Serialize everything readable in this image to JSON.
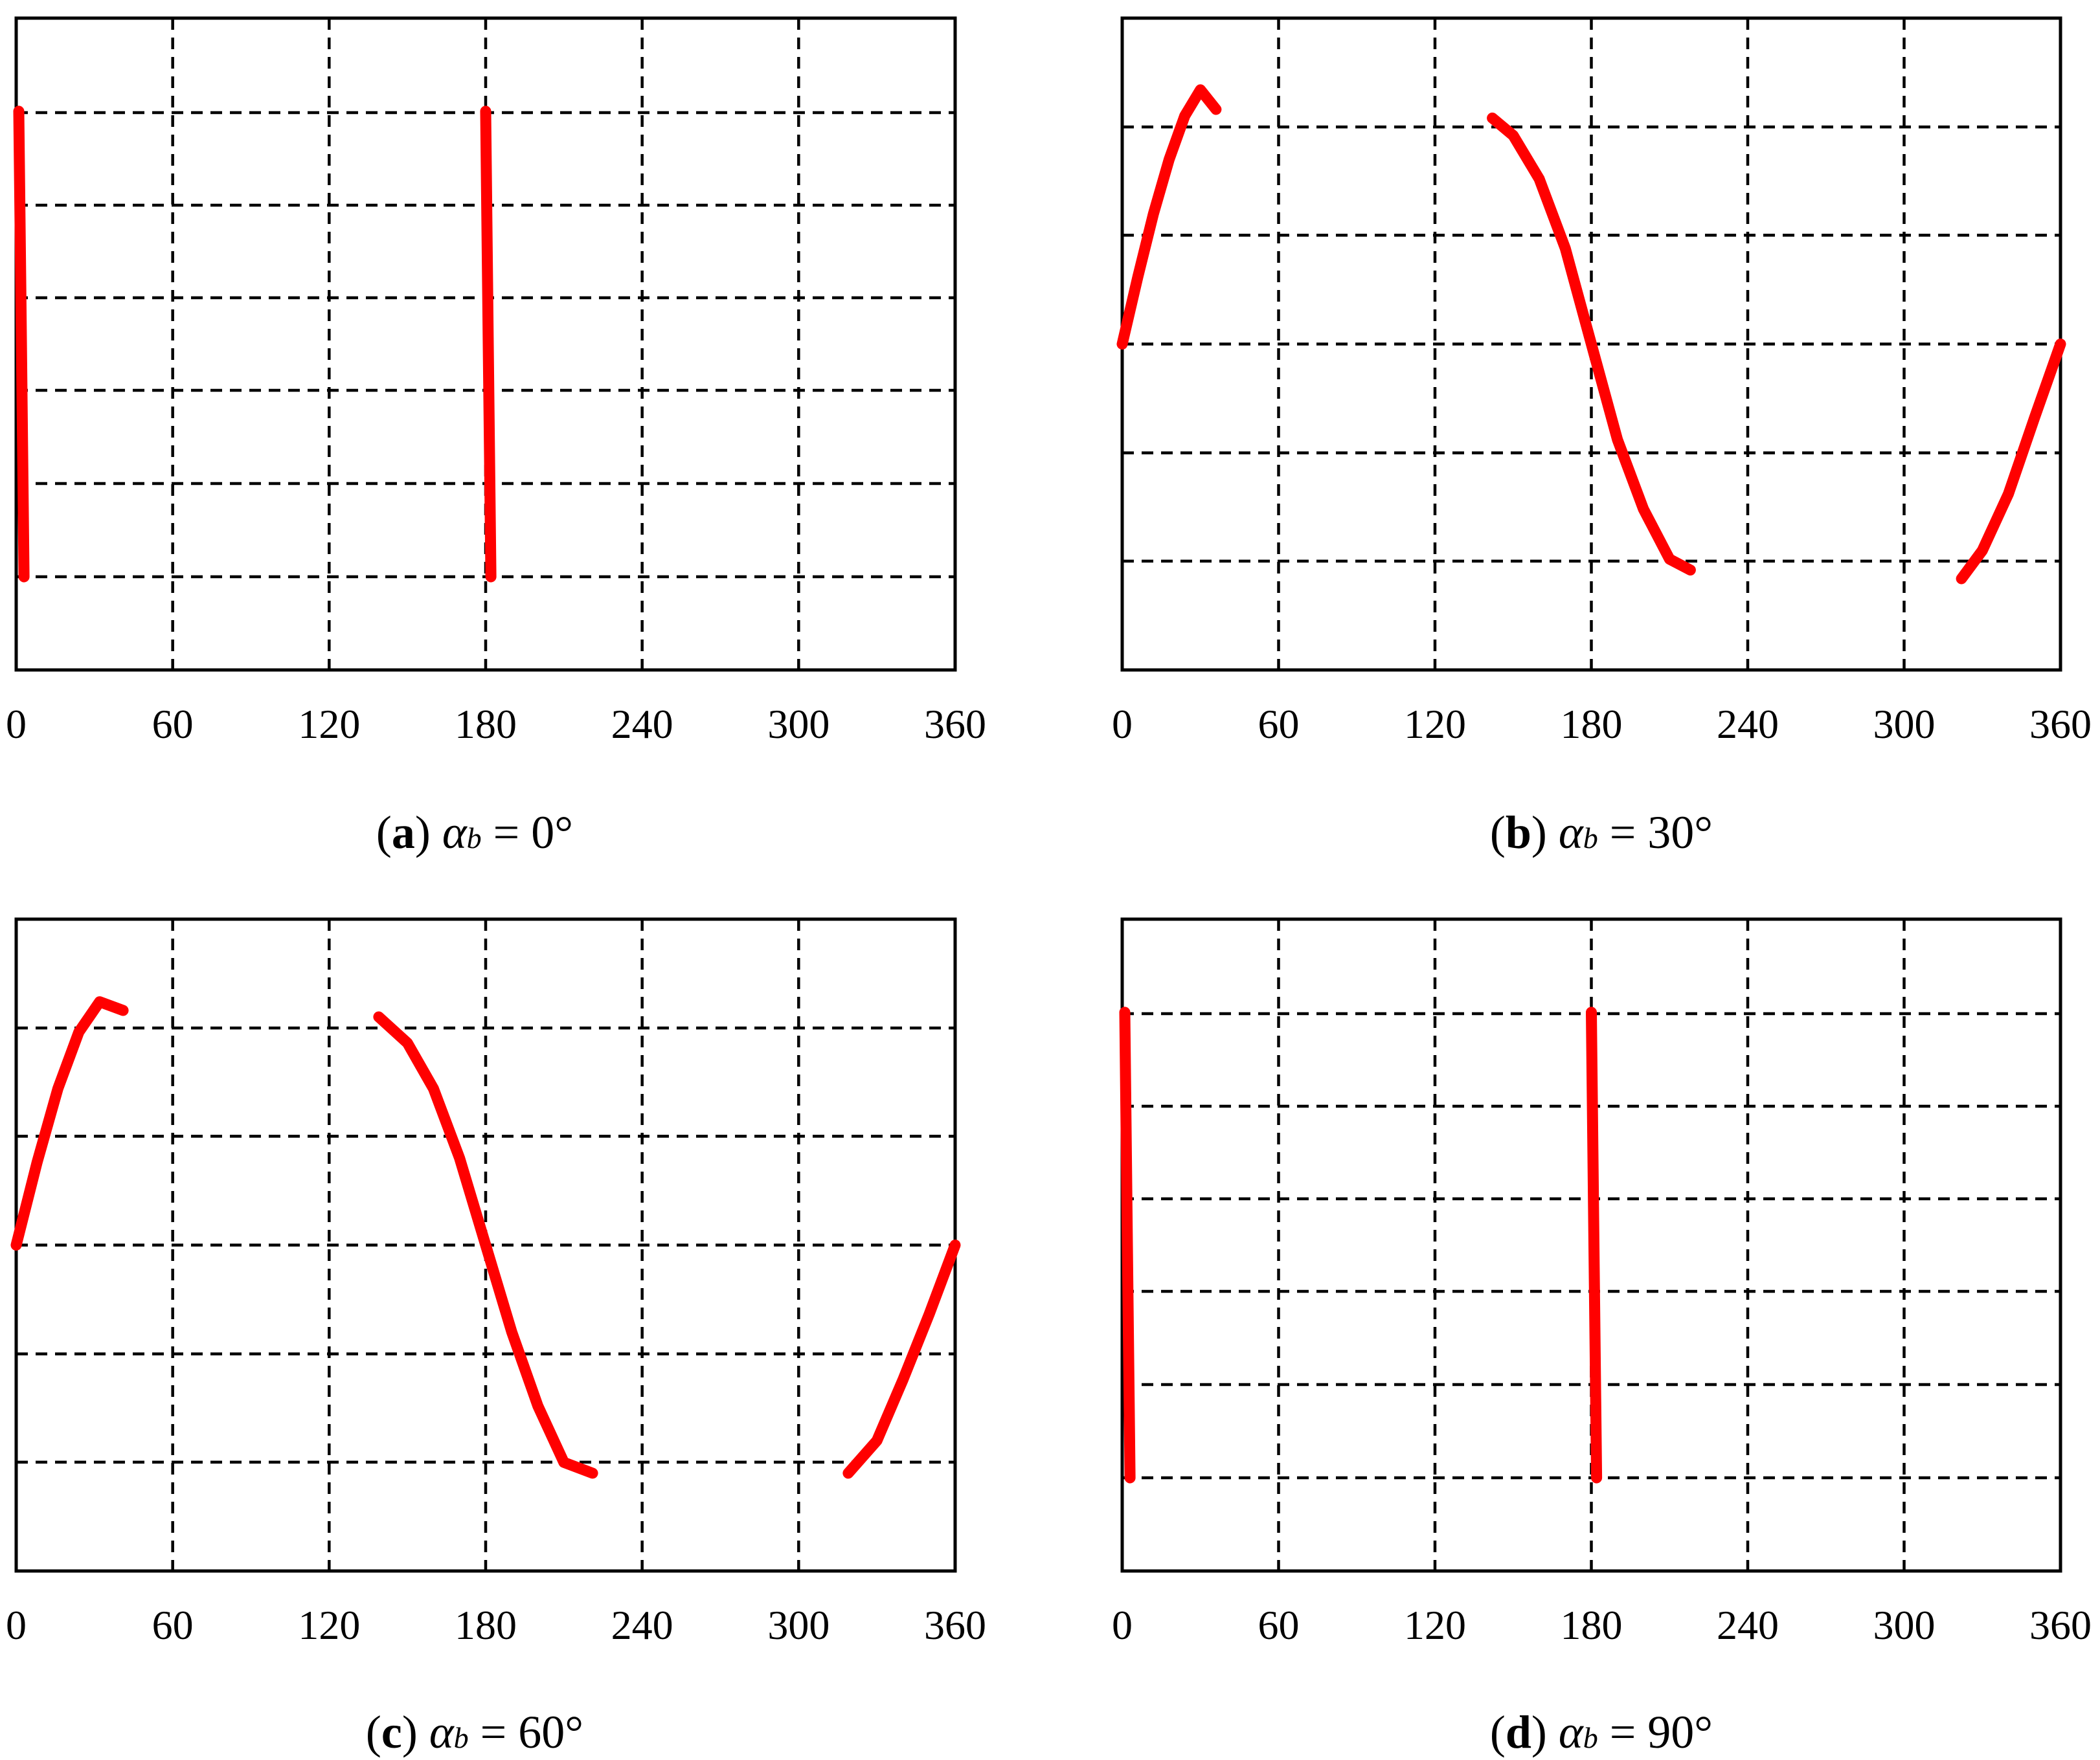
{
  "chart_data": [
    {
      "type": "line",
      "caption": {
        "label": "a",
        "symbol": "α",
        "subscript": "b",
        "value": "= 0°"
      },
      "x_ticks": [
        "0",
        "60",
        "120",
        "180",
        "240",
        "300",
        "360"
      ],
      "xlim": [
        0,
        360
      ],
      "ylim": [
        -1.4,
        1.4
      ],
      "grid": true,
      "color": "#ff0000",
      "series": [
        {
          "x": [
            1,
            2,
            3
          ],
          "y": [
            1.0,
            0.0,
            -1.0
          ]
        },
        {
          "x": [
            180,
            181,
            182
          ],
          "y": [
            1.0,
            0.0,
            -1.0
          ]
        }
      ]
    },
    {
      "type": "line",
      "caption": {
        "label": "b",
        "symbol": "α",
        "subscript": "b",
        "value": "= 30°"
      },
      "x_ticks": [
        "0",
        "60",
        "120",
        "180",
        "240",
        "300",
        "360"
      ],
      "xlim": [
        0,
        360
      ],
      "ylim": [
        -1.5,
        1.5
      ],
      "grid": true,
      "color": "#ff0000",
      "series": [
        {
          "x": [
            0,
            6,
            12,
            18,
            24,
            30,
            36
          ],
          "y": [
            0.0,
            0.31,
            0.6,
            0.85,
            1.05,
            1.17,
            1.08
          ]
        },
        {
          "x": [
            142,
            150,
            160,
            170,
            180,
            190,
            200,
            210,
            218
          ],
          "y": [
            1.04,
            0.96,
            0.76,
            0.44,
            0.0,
            -0.44,
            -0.76,
            -0.99,
            -1.04
          ]
        },
        {
          "x": [
            322,
            330,
            340,
            350,
            360
          ],
          "y": [
            -1.08,
            -0.95,
            -0.69,
            -0.34,
            0.0
          ]
        }
      ]
    },
    {
      "type": "line",
      "caption": {
        "label": "c",
        "symbol": "α",
        "subscript": "b",
        "value": "= 60°"
      },
      "x_ticks": [
        "0",
        "60",
        "120",
        "180",
        "240",
        "300",
        "360"
      ],
      "xlim": [
        0,
        360
      ],
      "ylim": [
        -1.5,
        1.5
      ],
      "grid": true,
      "color": "#ff0000",
      "series": [
        {
          "x": [
            0,
            8,
            16,
            24,
            32,
            41
          ],
          "y": [
            0.0,
            0.38,
            0.72,
            0.98,
            1.12,
            1.08
          ]
        },
        {
          "x": [
            139,
            150,
            160,
            170,
            180,
            190,
            200,
            210,
            221
          ],
          "y": [
            1.05,
            0.93,
            0.72,
            0.4,
            0.0,
            -0.4,
            -0.74,
            -1.0,
            -1.05
          ]
        },
        {
          "x": [
            319,
            330,
            340,
            350,
            360
          ],
          "y": [
            -1.05,
            -0.9,
            -0.62,
            -0.32,
            0.0
          ]
        }
      ]
    },
    {
      "type": "line",
      "caption": {
        "label": "d",
        "symbol": "α",
        "subscript": "b",
        "value": "= 90°"
      },
      "x_ticks": [
        "0",
        "60",
        "120",
        "180",
        "240",
        "300",
        "360"
      ],
      "xlim": [
        0,
        360
      ],
      "ylim": [
        -1.4,
        1.4
      ],
      "grid": true,
      "color": "#ff0000",
      "series": [
        {
          "x": [
            1,
            2,
            3
          ],
          "y": [
            1.0,
            0.0,
            -1.0
          ]
        },
        {
          "x": [
            180,
            181,
            182
          ],
          "y": [
            1.0,
            0.0,
            -1.0
          ]
        }
      ]
    }
  ]
}
